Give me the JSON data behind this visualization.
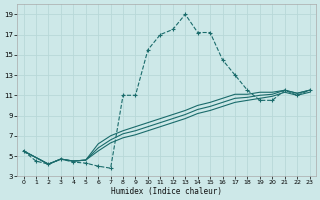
{
  "xlabel": "Humidex (Indice chaleur)",
  "bg_color": "#cde8e8",
  "grid_color": "#b8d8d8",
  "line_color": "#1a6b6b",
  "xlim": [
    -0.5,
    23.5
  ],
  "ylim": [
    3,
    20
  ],
  "yticks": [
    3,
    5,
    7,
    9,
    11,
    13,
    15,
    17,
    19
  ],
  "xticks": [
    0,
    1,
    2,
    3,
    4,
    5,
    6,
    7,
    8,
    9,
    10,
    11,
    12,
    13,
    14,
    15,
    16,
    17,
    18,
    19,
    20,
    21,
    22,
    23
  ],
  "s1_x": [
    0,
    1,
    2,
    3,
    4,
    5,
    6,
    7,
    8,
    9,
    10,
    11,
    12,
    13,
    14,
    15,
    16,
    17,
    18,
    19,
    20,
    21,
    22,
    23
  ],
  "s1_y": [
    5.5,
    4.5,
    4.2,
    4.7,
    4.4,
    4.3,
    4.0,
    3.8,
    11.0,
    11.0,
    15.5,
    17.0,
    17.5,
    19.0,
    17.2,
    17.2,
    14.5,
    13.0,
    11.5,
    10.5,
    10.5,
    11.5,
    11.0,
    11.5
  ],
  "s2_x": [
    0,
    2,
    3,
    4,
    5,
    6,
    7,
    8,
    9,
    10,
    11,
    12,
    13,
    14,
    15,
    16,
    17,
    18,
    19,
    20,
    21,
    22,
    23
  ],
  "s2_y": [
    5.5,
    4.2,
    4.7,
    4.5,
    4.6,
    5.5,
    6.3,
    6.8,
    7.1,
    7.5,
    7.9,
    8.3,
    8.7,
    9.2,
    9.5,
    9.9,
    10.3,
    10.5,
    10.7,
    10.9,
    11.3,
    11.0,
    11.3
  ],
  "s3_x": [
    0,
    2,
    3,
    4,
    5,
    6,
    7,
    8,
    9,
    10,
    11,
    12,
    13,
    14,
    15,
    16,
    17,
    18,
    19,
    20,
    21,
    22,
    23
  ],
  "s3_y": [
    5.5,
    4.2,
    4.7,
    4.5,
    4.6,
    5.8,
    6.6,
    7.2,
    7.5,
    7.9,
    8.3,
    8.7,
    9.1,
    9.6,
    9.9,
    10.3,
    10.7,
    10.8,
    11.0,
    11.1,
    11.5,
    11.2,
    11.5
  ],
  "s4_x": [
    0,
    2,
    3,
    4,
    5,
    6,
    7,
    8,
    9,
    10,
    11,
    12,
    13,
    14,
    15,
    16,
    17,
    18,
    19,
    20,
    21,
    22,
    23
  ],
  "s4_y": [
    5.5,
    4.2,
    4.7,
    4.5,
    4.6,
    6.2,
    7.0,
    7.5,
    7.9,
    8.3,
    8.7,
    9.1,
    9.5,
    10.0,
    10.3,
    10.7,
    11.1,
    11.1,
    11.3,
    11.3,
    11.5,
    11.2,
    11.5
  ]
}
